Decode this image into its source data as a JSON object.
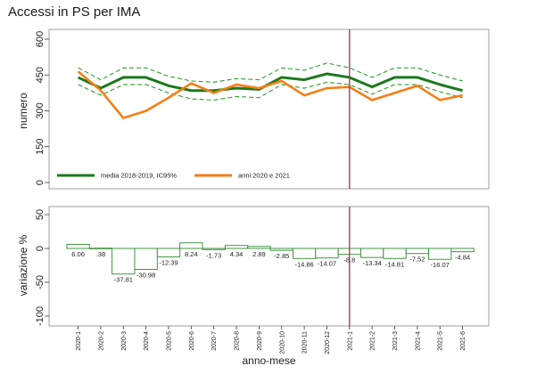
{
  "title": "Accessi in PS per IMA",
  "colors": {
    "mean": "#1b7a1b",
    "ci": "#2ca02c",
    "current": "#f57f17",
    "diff_bar": "#2e8b2e",
    "vline": "#a0305a"
  },
  "chart_data": [
    {
      "type": "line",
      "ylabel": "numero",
      "ylim": [
        0,
        600
      ],
      "yticks": [
        0,
        150,
        300,
        450,
        600
      ],
      "legend_position": "bottom-left",
      "categories": [
        "2020-1",
        "2020-2",
        "2020-3",
        "2020-4",
        "2020-5",
        "2020-6",
        "2020-7",
        "2020-8",
        "2020-9",
        "2020-10",
        "2020-11",
        "2020-12",
        "2021-1",
        "2021-2",
        "2021-3",
        "2021-4",
        "2021-5",
        "2021-6"
      ],
      "vline_at": "2021-1",
      "series": [
        {
          "name": "media 2018-2019, IC95%",
          "values": [
            440,
            395,
            440,
            440,
            405,
            385,
            385,
            395,
            390,
            440,
            430,
            455,
            440,
            400,
            440,
            440,
            410,
            385
          ],
          "ci_upper": [
            480,
            430,
            480,
            480,
            445,
            425,
            420,
            435,
            430,
            480,
            470,
            500,
            480,
            440,
            480,
            480,
            450,
            425
          ],
          "ci_lower": [
            410,
            365,
            410,
            410,
            375,
            350,
            345,
            360,
            355,
            410,
            395,
            420,
            410,
            370,
            410,
            410,
            380,
            355
          ]
        },
        {
          "name": "anni 2020 e 2021",
          "values": [
            465,
            385,
            270,
            300,
            355,
            415,
            375,
            410,
            395,
            425,
            365,
            395,
            400,
            345,
            375,
            405,
            345,
            365
          ]
        }
      ]
    },
    {
      "type": "bar",
      "ylabel": "variazione %",
      "xlabel": "anno-mese",
      "ylim": [
        -100,
        50
      ],
      "yticks": [
        -100,
        -50,
        0,
        50
      ],
      "categories": [
        "2020-1",
        "2020-2",
        "2020-3",
        "2020-4",
        "2020-5",
        "2020-6",
        "2020-7",
        "2020-8",
        "2020-9",
        "2020-10",
        "2020-11",
        "2020-12",
        "2021-1",
        "2021-2",
        "2021-3",
        "2021-4",
        "2021-5",
        "2021-6"
      ],
      "values": [
        6.06,
        0.38,
        -37.81,
        -30.98,
        -12.39,
        8.24,
        -1.73,
        4.34,
        2.89,
        -2.85,
        -14.86,
        -14.07,
        -8.8,
        -13.34,
        -14.81,
        -7.52,
        -16.07,
        -4.84
      ],
      "labels": [
        "6.06",
        ".38",
        "-37.81",
        "-30.98",
        "-12.39",
        "8.24",
        "-1.73",
        "4.34",
        "2.89",
        "-2.85",
        "-14.86",
        "-14.07",
        "-8.8",
        "-13.34",
        "-14.81",
        "-7.52",
        "-16.07",
        "-4.84"
      ],
      "vline_at": "2021-1"
    }
  ]
}
